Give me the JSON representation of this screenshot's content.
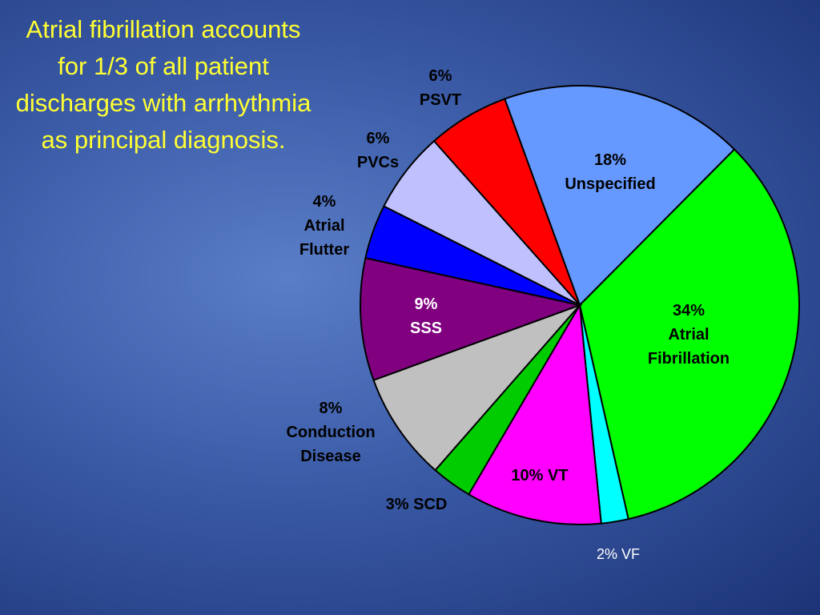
{
  "chart_data": {
    "type": "pie",
    "title": "Atrial fibrillation accounts for 1/3 of all patient discharges with arrhythmia as principal diagnosis.",
    "categories": [
      "Unspecified",
      "Atrial Fibrillation",
      "VF",
      "VT",
      "SCD",
      "Conduction Disease",
      "SSS",
      "Atrial Flutter",
      "PVCs",
      "PSVT"
    ],
    "values": [
      18,
      34,
      2,
      10,
      3,
      8,
      9,
      4,
      6,
      6
    ],
    "value_labels": [
      "18%",
      "34%",
      "2%",
      "10%",
      "3%",
      "8%",
      "9%",
      "4%",
      "6%",
      "6%"
    ],
    "colors": [
      "#6699ff",
      "#00ff00",
      "#00ffff",
      "#ff00ff",
      "#00cc00",
      "#c0c0c0",
      "#800080",
      "#0000ff",
      "#c0c0ff",
      "#ff0000"
    ]
  }
}
